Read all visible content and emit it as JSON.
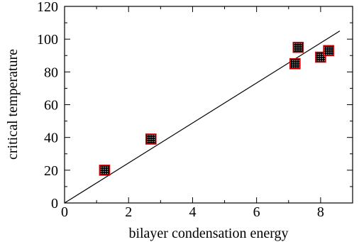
{
  "chart_data": {
    "type": "scatter",
    "xlabel": "bilayer condensation energy",
    "ylabel": "critical temperature",
    "xlim": [
      0,
      9
    ],
    "ylim": [
      0,
      120
    ],
    "x_ticks": [
      0,
      2,
      4,
      6,
      8
    ],
    "y_ticks": [
      0,
      20,
      40,
      60,
      80,
      100,
      120
    ],
    "grid": false,
    "marker_edge_color": "#cc0000",
    "marker_fill_color": "#000000",
    "series": [
      {
        "points": [
          {
            "x": 1.25,
            "y": 20
          },
          {
            "x": 2.7,
            "y": 39
          },
          {
            "x": 7.2,
            "y": 85
          },
          {
            "x": 7.3,
            "y": 95
          },
          {
            "x": 8.0,
            "y": 89
          },
          {
            "x": 8.25,
            "y": 93
          }
        ]
      }
    ],
    "fit_line": {
      "x": [
        0,
        8.6
      ],
      "y": [
        0,
        105
      ],
      "color": "#000000"
    }
  }
}
